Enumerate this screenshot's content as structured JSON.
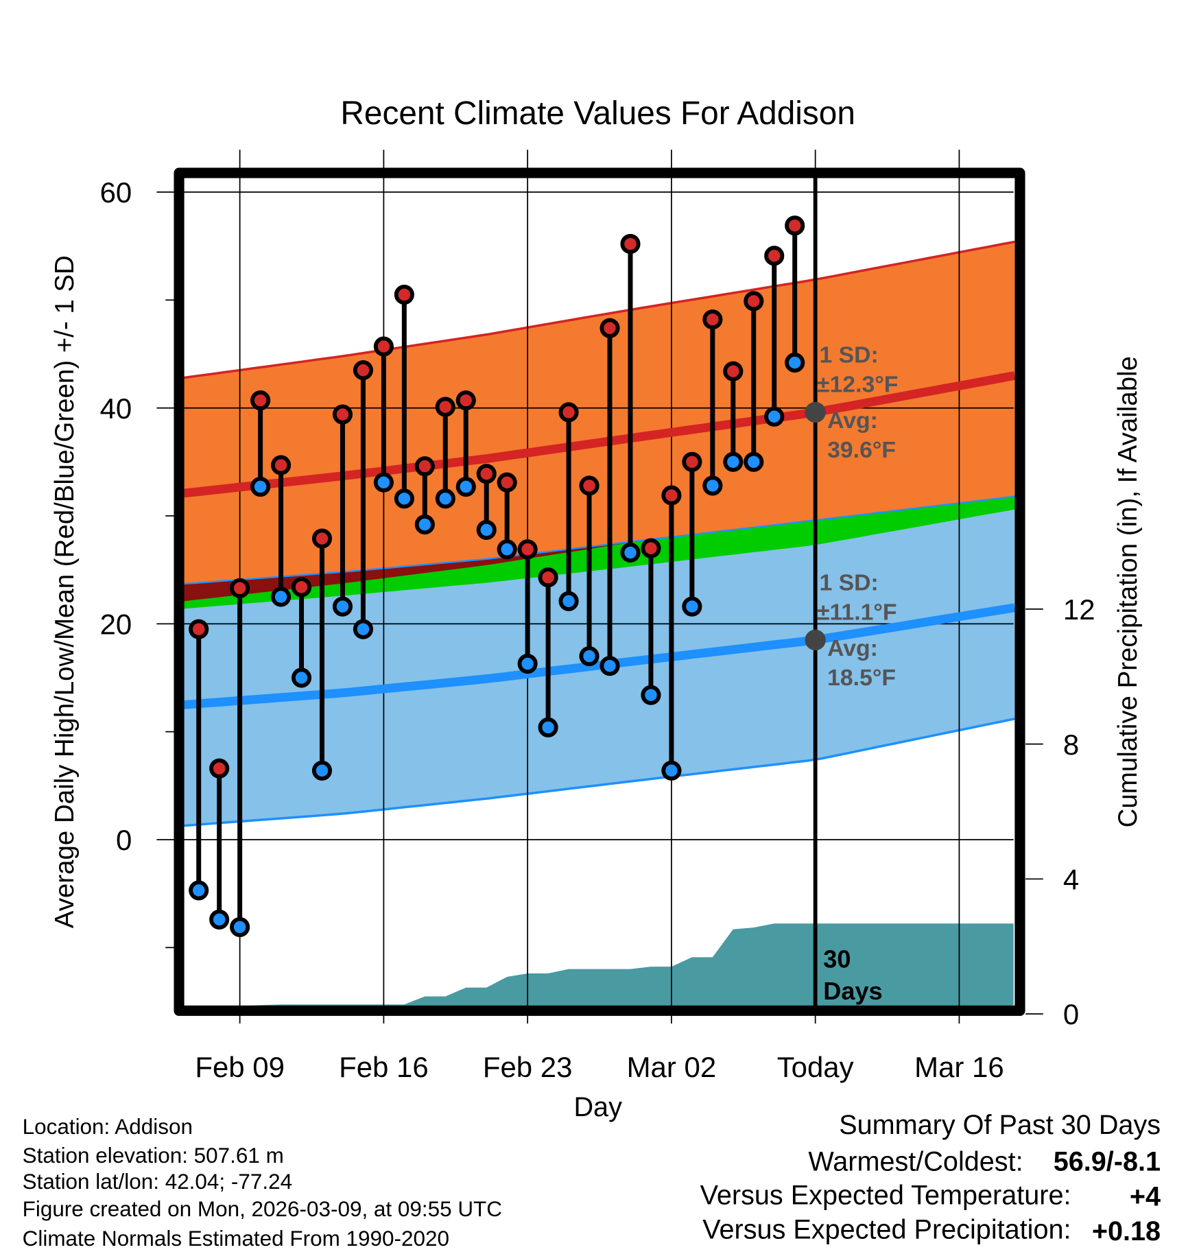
{
  "chart_data": {
    "type": "line",
    "title": "Recent Climate Values For Addison",
    "xlabel": "Day",
    "ylabel": "Average Daily High/Low/Mean (Red/Blue/Green) +/- 1 SD",
    "y2label": "Cumulative Precipitation (in), If Available",
    "ylim": [
      -15.4,
      61.3
    ],
    "y2lim": [
      0,
      23.5
    ],
    "y_ticks": [
      60,
      40,
      20,
      0
    ],
    "y_minor_ticks": [
      50,
      30,
      10,
      -10
    ],
    "y2_ticks": [
      12,
      8,
      4,
      0
    ],
    "x_ticks": [
      {
        "label": "Feb 09",
        "day_index": 2
      },
      {
        "label": "Feb 16",
        "day_index": 9
      },
      {
        "label": "Feb 23",
        "day_index": 16
      },
      {
        "label": "Mar 02",
        "day_index": 23
      },
      {
        "label": "Today",
        "day_index": 30
      },
      {
        "label": "Mar 16",
        "day_index": 37
      }
    ],
    "x_range_day_index": [
      -0.72,
      39.7
    ],
    "today_day_index": 30,
    "days": [
      "Feb 07",
      "Feb 08",
      "Feb 09",
      "Feb 10",
      "Feb 11",
      "Feb 12",
      "Feb 13",
      "Feb 14",
      "Feb 15",
      "Feb 16",
      "Feb 17",
      "Feb 18",
      "Feb 19",
      "Feb 20",
      "Feb 21",
      "Feb 22",
      "Feb 23",
      "Feb 24",
      "Feb 25",
      "Feb 26",
      "Feb 27",
      "Feb 28",
      "Mar 01",
      "Mar 02",
      "Mar 03",
      "Mar 04",
      "Mar 05",
      "Mar 06",
      "Mar 07",
      "Mar 08"
    ],
    "highs": [
      19.5,
      6.6,
      23.3,
      40.7,
      34.7,
      23.4,
      27.9,
      39.4,
      43.5,
      45.7,
      50.5,
      34.6,
      40.1,
      40.7,
      33.9,
      33.1,
      26.9,
      24.3,
      39.6,
      32.8,
      47.4,
      55.2,
      27.0,
      31.9,
      35.0,
      48.2,
      43.4,
      49.9,
      54.1,
      56.9
    ],
    "lows": [
      -4.7,
      -7.4,
      -8.1,
      32.7,
      22.5,
      15.0,
      6.4,
      21.6,
      19.5,
      33.1,
      31.6,
      29.2,
      31.6,
      32.7,
      28.7,
      26.9,
      16.3,
      10.4,
      22.1,
      17.0,
      16.1,
      26.6,
      13.4,
      6.4,
      21.6,
      32.8,
      35.0,
      35.0,
      39.2,
      44.2
    ],
    "normals": {
      "day_index": [
        -0.72,
        7,
        14,
        21,
        30,
        39.7
      ],
      "avg_high": [
        32.1,
        33.7,
        35.3,
        37.2,
        39.6,
        43.0
      ],
      "sd_high": [
        10.7,
        11.1,
        11.5,
        11.9,
        12.3,
        12.4
      ],
      "avg_low": [
        12.5,
        13.6,
        14.9,
        16.5,
        18.5,
        21.5
      ],
      "sd_low": [
        11.2,
        11.2,
        11.1,
        11.1,
        11.1,
        10.3
      ]
    },
    "precip_cumulative": {
      "day_index": [
        0,
        1,
        2,
        3,
        4,
        5,
        6,
        7,
        8,
        9,
        10,
        11,
        12,
        13,
        14,
        15,
        16,
        17,
        18,
        19,
        20,
        21,
        22,
        23,
        24,
        25,
        26,
        27,
        28,
        29,
        30,
        39.7
      ],
      "values": [
        0,
        0,
        0.02,
        0.26,
        0.28,
        0.28,
        0.28,
        0.28,
        0.28,
        0.28,
        0.28,
        0.52,
        0.52,
        0.78,
        0.78,
        1.1,
        1.2,
        1.2,
        1.33,
        1.33,
        1.33,
        1.33,
        1.4,
        1.4,
        1.68,
        1.68,
        2.51,
        2.56,
        2.68,
        2.68,
        2.68,
        2.68
      ]
    },
    "annotations": {
      "high_sd_label": "1 SD:",
      "high_sd_value": "±12.3°F",
      "high_avg_label": "Avg:",
      "high_avg_value": "39.6°F",
      "low_sd_label": "1 SD:",
      "low_sd_value": "±11.1°F",
      "low_avg_label": "Avg:",
      "low_avg_value": "18.5°F",
      "days_num": "30",
      "days_word": "Days"
    },
    "colors": {
      "high_band": "#f47a2f",
      "low_band": "#85c1e9",
      "overlap": "#00cc00",
      "dark_band": "#8b1010",
      "avg_high": "#d42424",
      "avg_low": "#1e90ff",
      "high_point": "#d42a2a",
      "low_point": "#1e90ff",
      "precip": "#4a9aa2"
    }
  },
  "footer": {
    "location": "Location: Addison",
    "elevation": "Station elevation: 507.61 m",
    "latlon": "Station lat/lon: 42.04; -77.24",
    "created": "Figure created on Mon, 2026-03-09, at 09:55 UTC",
    "normals": "Climate Normals Estimated From 1990-2020"
  },
  "summary": {
    "title": "Summary Of Past 30 Days",
    "warmest_coldest_label": "Warmest/Coldest:",
    "warmest_coldest_value": "56.9/-8.1",
    "temp_label": "Versus Expected Temperature:",
    "temp_value": "+4",
    "temp_color": "#d42424",
    "precip_label": "Versus Expected Precipitation:",
    "precip_value": "+0.18",
    "precip_color": "#00cc00"
  }
}
